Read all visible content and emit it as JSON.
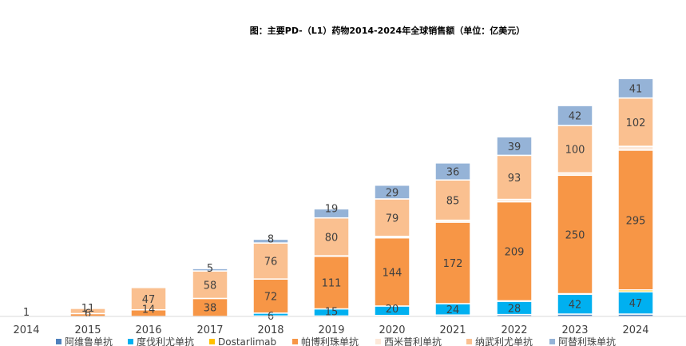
{
  "chart_data": {
    "type": "bar",
    "stacked": true,
    "title": "图：主要PD-（L1）药物2014-2024年全球销售额（单位：亿美元）",
    "xlabel": "",
    "ylabel": "",
    "ylim": [
      0,
      555
    ],
    "grid": false,
    "legend_position": "bottom",
    "categories": [
      "2014",
      "2015",
      "2016",
      "2017",
      "2018",
      "2019",
      "2020",
      "2021",
      "2022",
      "2023",
      "2024"
    ],
    "series": [
      {
        "name": "阿维鲁单抗",
        "color": "#4f81bd",
        "values": [
          0,
          0,
          0,
          0,
          1,
          1,
          2,
          3,
          4,
          5,
          5
        ],
        "labels": [
          null,
          null,
          null,
          null,
          null,
          null,
          null,
          null,
          null,
          null,
          null
        ]
      },
      {
        "name": "度伐利尤单抗",
        "color": "#00b0f0",
        "values": [
          0,
          0,
          0,
          0,
          6,
          15,
          20,
          24,
          28,
          42,
          47
        ],
        "labels": [
          null,
          null,
          null,
          null,
          "6",
          "15",
          "20",
          "24",
          "28",
          "42",
          "47"
        ]
      },
      {
        "name": "Dostarlimab",
        "color": "#ffc000",
        "values": [
          0,
          0,
          0,
          0,
          0,
          0,
          0,
          0,
          1,
          1,
          4
        ],
        "labels": [
          null,
          null,
          null,
          null,
          null,
          null,
          null,
          null,
          null,
          null,
          null
        ]
      },
      {
        "name": "帕博利珠单抗",
        "color": "#f79646",
        "values": [
          1,
          6,
          14,
          38,
          72,
          111,
          144,
          172,
          209,
          250,
          295
        ],
        "labels": [
          "1",
          "6",
          "14",
          "38",
          "72",
          "111",
          "144",
          "172",
          "209",
          "250",
          "295"
        ]
      },
      {
        "name": "西米普利单抗",
        "color": "#fde9d9",
        "values": [
          0,
          0,
          0,
          0,
          0,
          1,
          3,
          4,
          5,
          5,
          8
        ],
        "labels": [
          null,
          null,
          null,
          null,
          null,
          null,
          null,
          null,
          null,
          null,
          null
        ]
      },
      {
        "name": "纳武利尤单抗",
        "color": "#fac090",
        "values": [
          0,
          11,
          47,
          58,
          76,
          80,
          79,
          85,
          93,
          100,
          102
        ],
        "labels": [
          null,
          "11",
          "47",
          "58",
          "76",
          "80",
          "79",
          "85",
          "93",
          "100",
          "102"
        ]
      },
      {
        "name": "阿替利珠单抗",
        "color": "#95b3d7",
        "values": [
          0,
          0,
          0,
          5,
          8,
          19,
          29,
          36,
          39,
          42,
          41
        ],
        "labels": [
          null,
          null,
          null,
          "5",
          "8",
          "19",
          "29",
          "36",
          "39",
          "42",
          "41"
        ]
      }
    ]
  }
}
